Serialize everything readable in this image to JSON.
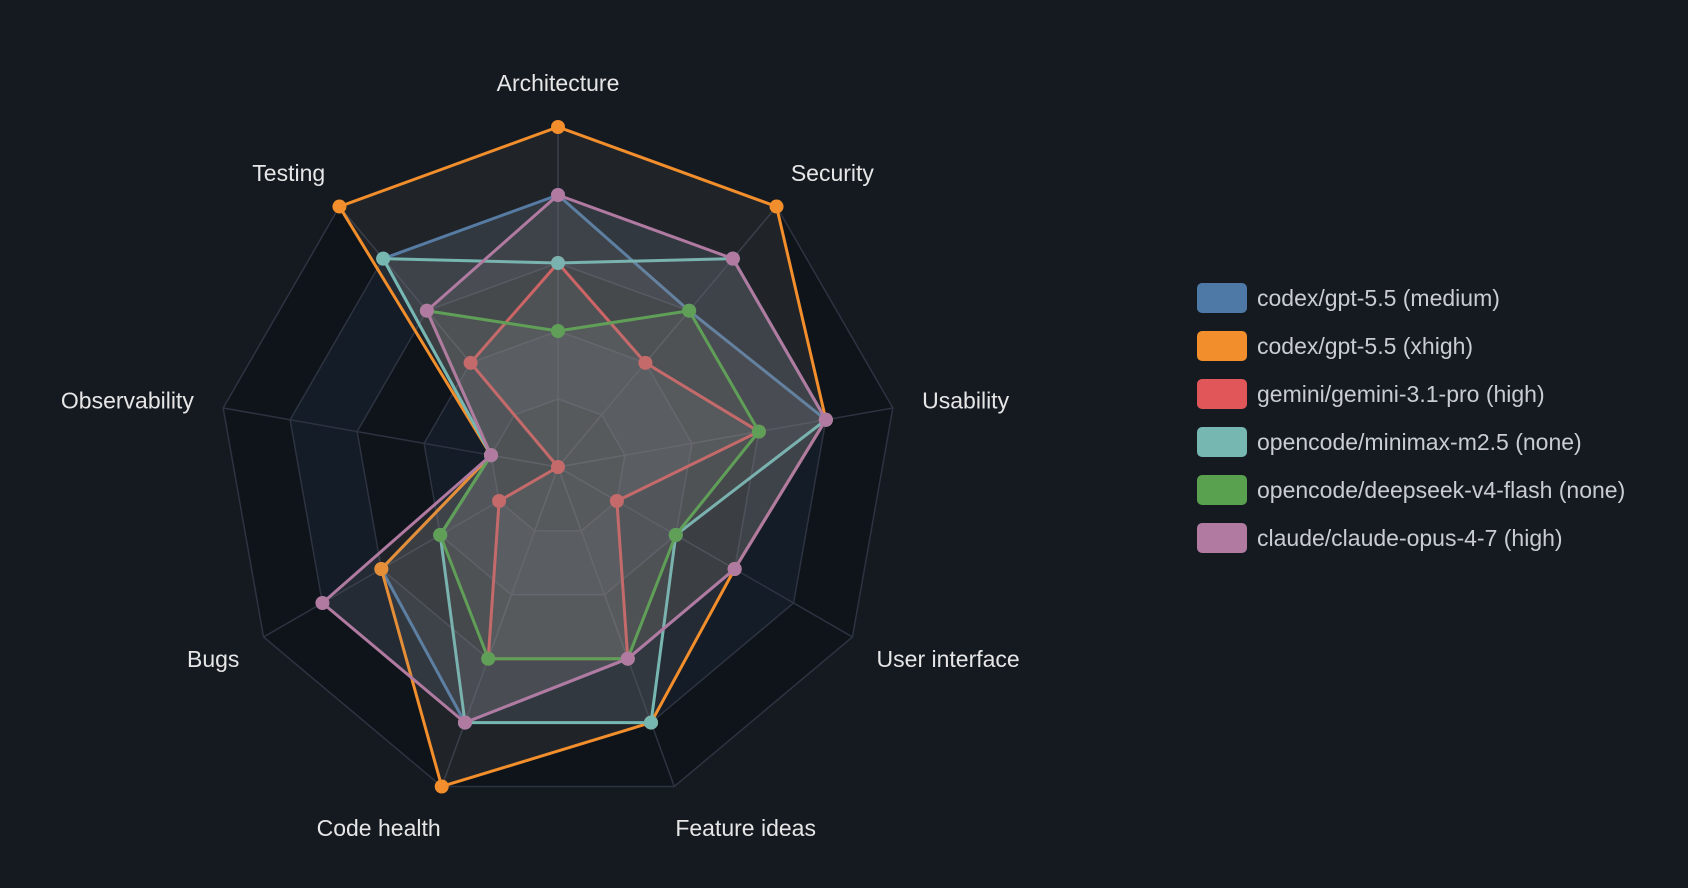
{
  "chart_data": {
    "type": "radar",
    "axes": [
      "Architecture",
      "Security",
      "Usability",
      "User interface",
      "Feature ideas",
      "Code health",
      "Bugs",
      "Observability",
      "Testing"
    ],
    "rlim": [
      0,
      5
    ],
    "grid": true,
    "legend_position": "right",
    "series": [
      {
        "name": "codex/gpt-5.5 (medium)",
        "color": "#4e79a7",
        "values": [
          4,
          3,
          4,
          3,
          3,
          4,
          3,
          1,
          4
        ]
      },
      {
        "name": "codex/gpt-5.5 (xhigh)",
        "color": "#f28e2b",
        "values": [
          5,
          5,
          4,
          3,
          4,
          5,
          3,
          1,
          5
        ]
      },
      {
        "name": "gemini/gemini-3.1-pro (high)",
        "color": "#e15759",
        "values": [
          3,
          2,
          3,
          1,
          3,
          3,
          1,
          0,
          2
        ]
      },
      {
        "name": "opencode/minimax-m2.5 (none)",
        "color": "#76b7b2",
        "values": [
          3,
          4,
          4,
          2,
          4,
          4,
          2,
          1,
          4
        ]
      },
      {
        "name": "opencode/deepseek-v4-flash (none)",
        "color": "#59a14f",
        "values": [
          2,
          3,
          3,
          2,
          3,
          3,
          2,
          1,
          3
        ]
      },
      {
        "name": "claude/claude-opus-4-7 (high)",
        "color": "#b07aa1",
        "values": [
          4,
          4,
          4,
          3,
          3,
          4,
          4,
          1,
          3
        ]
      }
    ]
  }
}
